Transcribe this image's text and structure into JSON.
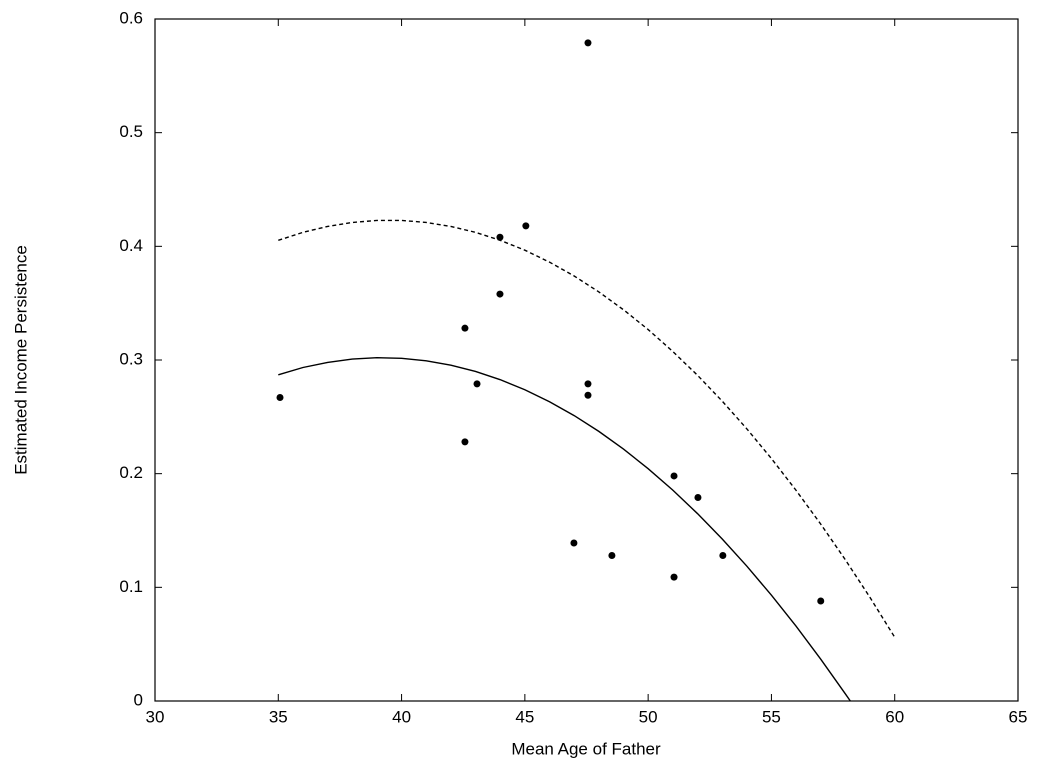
{
  "chart_data": {
    "type": "scatter",
    "xlabel": "Mean Age of Father",
    "ylabel": "Estimated Income Persistence",
    "xlim": [
      30,
      65
    ],
    "xticks": [
      30,
      35,
      40,
      45,
      50,
      55,
      60,
      65
    ],
    "ylim": [
      0,
      0.6
    ],
    "yticks": [
      0,
      0.1,
      0.2,
      0.3,
      0.4,
      0.5,
      0.6
    ],
    "grid": false,
    "series": [
      {
        "kind": "scatter",
        "color": "#000000",
        "x": [
          35.07,
          42.57,
          42.57,
          43.06,
          43.99,
          43.99,
          45.04,
          46.99,
          47.56,
          47.56,
          47.56,
          48.53,
          51.05,
          51.05,
          52.02,
          53.03,
          57.0
        ],
        "values": [
          0.267,
          0.328,
          0.228,
          0.279,
          0.408,
          0.358,
          0.418,
          0.139,
          0.579,
          0.279,
          0.269,
          0.128,
          0.198,
          0.109,
          0.179,
          0.128,
          0.088
        ]
      },
      {
        "kind": "line",
        "dashed": false,
        "color": "#000000",
        "x": [
          35,
          36,
          37,
          38,
          39,
          40,
          41,
          42,
          43,
          44,
          45,
          46,
          47,
          48,
          49,
          50,
          51,
          52,
          53,
          54,
          55,
          56,
          57,
          58,
          58.2
        ],
        "values": [
          0.287,
          0.2934,
          0.2979,
          0.3008,
          0.302,
          0.3015,
          0.2993,
          0.2954,
          0.2899,
          0.2827,
          0.2738,
          0.2633,
          0.2511,
          0.2372,
          0.2216,
          0.2044,
          0.1855,
          0.1649,
          0.1426,
          0.1187,
          0.0931,
          0.0658,
          0.0368,
          0.0062,
          0
        ]
      },
      {
        "kind": "line",
        "dashed": true,
        "color": "#000000",
        "x": [
          35,
          36,
          37,
          38,
          39,
          40,
          41,
          42,
          43,
          44,
          45,
          46,
          47,
          48,
          49,
          50,
          51,
          52,
          53,
          54,
          55,
          56,
          57,
          58,
          59,
          60
        ],
        "values": [
          0.4053,
          0.4123,
          0.4175,
          0.421,
          0.4228,
          0.4228,
          0.421,
          0.4175,
          0.4123,
          0.4053,
          0.3966,
          0.3861,
          0.3739,
          0.3599,
          0.3442,
          0.3268,
          0.3075,
          0.2866,
          0.2639,
          0.2395,
          0.2133,
          0.1853,
          0.1556,
          0.1242,
          0.091,
          0.0561
        ]
      }
    ]
  }
}
